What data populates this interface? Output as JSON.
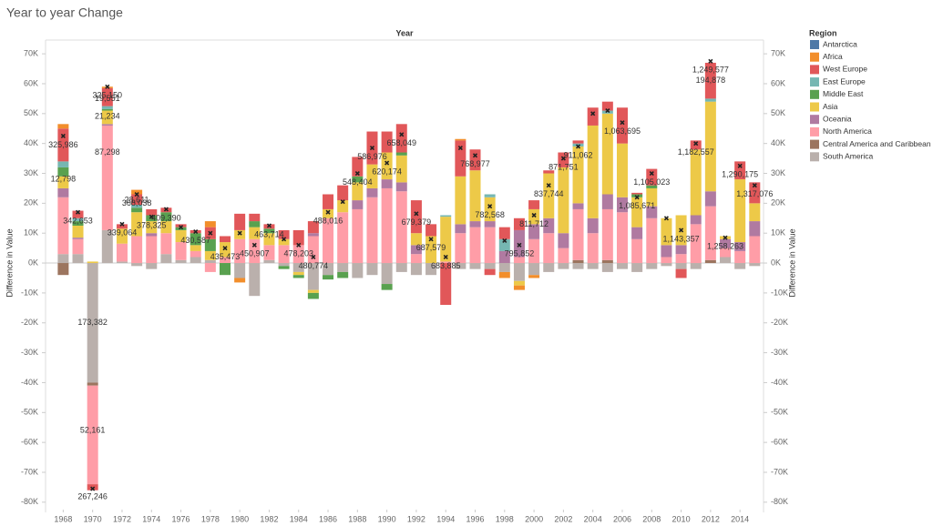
{
  "chart_data": {
    "type": "bar",
    "stacked": true,
    "title": "Year to year Change",
    "x_header": "Year",
    "y_label": "Difference in Value",
    "y2_label": "Difference in Value",
    "legend_title": "Region",
    "legend_position": "right",
    "x": [
      1968,
      1969,
      1970,
      1971,
      1972,
      1973,
      1974,
      1975,
      1976,
      1977,
      1978,
      1979,
      1980,
      1981,
      1982,
      1983,
      1984,
      1985,
      1986,
      1987,
      1988,
      1989,
      1990,
      1991,
      1992,
      1993,
      1994,
      1995,
      1996,
      1997,
      1998,
      1999,
      2000,
      2001,
      2002,
      2003,
      2004,
      2005,
      2006,
      2007,
      2008,
      2009,
      2010,
      2011,
      2012,
      2013,
      2014,
      2015
    ],
    "xlim": [
      1966.8,
      2015.6
    ],
    "xticks": [
      1968,
      1970,
      1972,
      1974,
      1976,
      1978,
      1980,
      1982,
      1984,
      1986,
      1988,
      1990,
      1992,
      1994,
      1996,
      1998,
      2000,
      2002,
      2004,
      2006,
      2008,
      2010,
      2012,
      2014
    ],
    "ylim": [
      -83400,
      74300
    ],
    "yticks": [
      {
        "value": -80000,
        "label": "-80K"
      },
      {
        "value": -70000,
        "label": "-70K"
      },
      {
        "value": -60000,
        "label": "-60K"
      },
      {
        "value": -50000,
        "label": "-50K"
      },
      {
        "value": -40000,
        "label": "-40K"
      },
      {
        "value": -30000,
        "label": "-30K"
      },
      {
        "value": -20000,
        "label": "-20K"
      },
      {
        "value": -10000,
        "label": "-10K"
      },
      {
        "value": 0,
        "label": "0K"
      },
      {
        "value": 10000,
        "label": "10K"
      },
      {
        "value": 20000,
        "label": "20K"
      },
      {
        "value": 30000,
        "label": "30K"
      },
      {
        "value": 40000,
        "label": "40K"
      },
      {
        "value": 50000,
        "label": "50K"
      },
      {
        "value": 60000,
        "label": "60K"
      },
      {
        "value": 70000,
        "label": "70K"
      }
    ],
    "series": [
      {
        "name": "Antarctica",
        "color": "#4e79a7",
        "values": [
          0,
          0,
          0,
          0,
          0,
          0,
          0,
          0,
          0,
          0,
          0,
          0,
          0,
          0,
          0,
          0,
          0,
          0,
          0,
          0,
          0,
          0,
          0,
          0,
          0,
          0,
          0,
          0,
          0,
          0,
          0,
          0,
          0,
          0,
          0,
          0,
          0,
          0,
          0,
          0,
          0,
          0,
          0,
          0,
          0,
          0,
          0,
          0
        ]
      },
      {
        "name": "Africa",
        "color": "#f28e2b",
        "values": [
          1500,
          0,
          0,
          500,
          0,
          1500,
          0,
          0,
          0,
          0,
          2000,
          0,
          -1500,
          0,
          0,
          0,
          0,
          0,
          0,
          0,
          0,
          0,
          0,
          0,
          0,
          0,
          0,
          500,
          0,
          0,
          -2000,
          -1500,
          -1000,
          0,
          0,
          0,
          0,
          0,
          0,
          0,
          0,
          0,
          0,
          0,
          0,
          0,
          0,
          0
        ]
      },
      {
        "name": "West Europe",
        "color": "#e15759",
        "values": [
          11000,
          2500,
          -2000,
          6000,
          1500,
          3500,
          2000,
          1500,
          1000,
          1000,
          4000,
          2000,
          5500,
          2500,
          1500,
          3000,
          5000,
          4000,
          5000,
          5000,
          6500,
          11000,
          7000,
          9500,
          11000,
          4000,
          -14000,
          12000,
          7000,
          -2000,
          4000,
          4000,
          3000,
          1000,
          5000,
          1000,
          6000,
          3000,
          12000,
          500,
          5500,
          0,
          -3000,
          3000,
          12000,
          0,
          6000,
          7000
        ]
      },
      {
        "name": "East Europe",
        "color": "#76b7b2",
        "values": [
          2000,
          1000,
          0,
          1000,
          0,
          1000,
          0,
          0,
          0,
          0,
          0,
          0,
          0,
          0,
          0,
          0,
          0,
          0,
          0,
          0,
          0,
          0,
          0,
          0,
          0,
          0,
          500,
          0,
          0,
          1000,
          4000,
          0,
          0,
          0,
          0,
          1000,
          0,
          1000,
          0,
          0,
          0,
          0,
          0,
          0,
          1000,
          0,
          0,
          0
        ]
      },
      {
        "name": "Middle East",
        "color": "#59a14f",
        "values": [
          3000,
          1500,
          0,
          500,
          0,
          1500,
          2000,
          3000,
          1000,
          4000,
          4000,
          -4000,
          0,
          2000,
          1500,
          -1000,
          -1000,
          -2000,
          -1500,
          -2000,
          2000,
          0,
          -2000,
          1000,
          0,
          0,
          0,
          0,
          0,
          0,
          0,
          0,
          0,
          0,
          0,
          0,
          0,
          0,
          0,
          1000,
          1000,
          0,
          0,
          0,
          0,
          0,
          0,
          0
        ]
      },
      {
        "name": "Asia",
        "color": "#edc948",
        "values": [
          4000,
          4000,
          500,
          4500,
          5000,
          8000,
          4000,
          4000,
          4000,
          2000,
          3000,
          5000,
          3000,
          4000,
          4000,
          2000,
          -1000,
          -1000,
          3000,
          4000,
          6000,
          8000,
          9000,
          9000,
          4000,
          9000,
          15000,
          16000,
          17000,
          8000,
          0,
          -1500,
          5000,
          15000,
          22000,
          19000,
          31000,
          27000,
          18000,
          10000,
          6000,
          9000,
          10000,
          22000,
          30000,
          1000,
          21000,
          6000
        ]
      },
      {
        "name": "Oceania",
        "color": "#b07aa1",
        "values": [
          3000,
          500,
          0,
          500,
          0,
          0,
          1000,
          0,
          0,
          0,
          0,
          0,
          0,
          0,
          0,
          0,
          0,
          1000,
          0,
          0,
          3000,
          3000,
          3000,
          3000,
          3000,
          0,
          0,
          3000,
          2000,
          2000,
          4000,
          9000,
          5000,
          5000,
          5000,
          2000,
          5000,
          5000,
          5000,
          4000,
          4000,
          4000,
          3000,
          3000,
          5000,
          3000,
          3000,
          5000
        ]
      },
      {
        "name": "North America",
        "color": "#ff9da7",
        "values": [
          19000,
          5000,
          -33000,
          35000,
          6000,
          9000,
          9000,
          7000,
          6000,
          2000,
          -3000,
          2000,
          8000,
          8000,
          5000,
          6000,
          6000,
          9000,
          15000,
          17000,
          18000,
          22000,
          25000,
          24000,
          3000,
          0,
          500,
          10000,
          12000,
          12000,
          0,
          2000,
          8000,
          10000,
          5000,
          17000,
          10000,
          17000,
          17000,
          8000,
          15000,
          2000,
          3000,
          13000,
          18000,
          3000,
          4000,
          9000
        ]
      },
      {
        "name": "Central America and Caribbean",
        "color": "#9c755f",
        "values": [
          -4000,
          0,
          -1000,
          0,
          0,
          0,
          0,
          0,
          0,
          0,
          0,
          0,
          0,
          0,
          0,
          0,
          0,
          0,
          0,
          0,
          0,
          0,
          0,
          0,
          0,
          0,
          0,
          0,
          0,
          0,
          0,
          0,
          0,
          0,
          0,
          1000,
          0,
          1000,
          0,
          0,
          0,
          0,
          0,
          0,
          1000,
          0,
          0,
          0
        ]
      },
      {
        "name": "South America",
        "color": "#bab0ac",
        "values": [
          3000,
          3000,
          -40000,
          11000,
          500,
          -1000,
          -2000,
          3000,
          1000,
          2000,
          1000,
          0,
          -5000,
          -11000,
          1000,
          -1000,
          -3000,
          -9000,
          -4000,
          -3000,
          -5000,
          -4000,
          -7000,
          -3000,
          -4000,
          -4000,
          0,
          -2000,
          -2000,
          -2000,
          -3000,
          -6000,
          -4000,
          -3000,
          -2000,
          -2000,
          -2000,
          -3000,
          -2000,
          -3000,
          -2000,
          -1000,
          -2000,
          -2000,
          0,
          2000,
          -2000,
          -1000
        ]
      }
    ],
    "markers": {
      "values": [
        42500,
        17000,
        -75500,
        59000,
        13000,
        23000,
        15500,
        18000,
        12000,
        10500,
        10000,
        5000,
        10000,
        6000,
        12500,
        8000,
        6000,
        2000,
        17000,
        20500,
        30000,
        38500,
        33500,
        43000,
        16500,
        8000,
        2000,
        38500,
        36000,
        19000,
        7500,
        6000,
        16000,
        26000,
        35000,
        39000,
        50000,
        51000,
        47000,
        22000,
        30000,
        15000,
        11000,
        40000,
        67500,
        8500,
        32500,
        26000
      ],
      "labels": [
        "325,986",
        "342,653",
        "267,246",
        "325,150",
        "339,064",
        "368,038",
        "378,325",
        "409,390",
        null,
        "430,587",
        null,
        "435,473",
        null,
        "450,907",
        "463,714",
        null,
        "478,203",
        "480,774",
        "488,016",
        null,
        "548,404",
        "586,976",
        "620,174",
        "658,049",
        "679,379",
        "687,579",
        "683,885",
        null,
        "768,977",
        "782,568",
        null,
        "795,852",
        "811,712",
        "837,744",
        "871,751",
        "911,062",
        null,
        null,
        "1,063,695",
        "1,085,671",
        "1,105,023",
        null,
        "1,143,357",
        "1,182,557",
        "1,249,577",
        "1,258,263",
        "1,290,175",
        "1,317,076"
      ]
    },
    "annotations": [
      {
        "x": 1968,
        "y": 28000,
        "label": "12,798"
      },
      {
        "x": 1970,
        "y": -20000,
        "label": "173,382"
      },
      {
        "x": 1970,
        "y": -56000,
        "label": "52,161"
      },
      {
        "x": 1971,
        "y": 55000,
        "label": "19,551"
      },
      {
        "x": 1971,
        "y": 49000,
        "label": "21,234"
      },
      {
        "x": 1971,
        "y": 37000,
        "label": "87,298"
      },
      {
        "x": 1973,
        "y": 21000,
        "label": "28,611"
      },
      {
        "x": 2012,
        "y": 61000,
        "label": "194,878"
      }
    ]
  }
}
